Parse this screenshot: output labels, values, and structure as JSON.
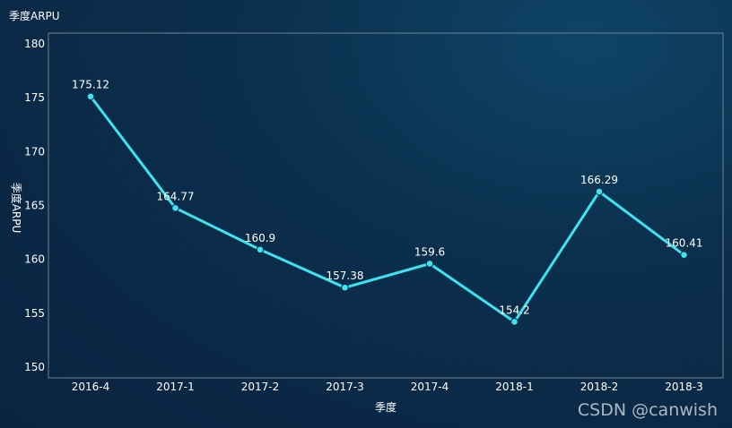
{
  "chart_data": {
    "type": "line",
    "title": "季度ARPU",
    "xlabel": "季度",
    "ylabel": "季度ARPU",
    "categories": [
      "2016-4",
      "2017-1",
      "2017-2",
      "2017-3",
      "2017-4",
      "2018-1",
      "2018-2",
      "2018-3"
    ],
    "series": [
      {
        "values": [
          175.12,
          164.77,
          160.9,
          157.38,
          159.6,
          154.2,
          166.29,
          160.41
        ]
      }
    ],
    "ylim": [
      149,
      181
    ],
    "yticks": [
      150,
      155,
      160,
      165,
      170,
      175,
      180
    ],
    "grid": false,
    "line_color": "#3de3ee",
    "point_color": "#3de3ee"
  },
  "watermark": "CSDN @canwish"
}
